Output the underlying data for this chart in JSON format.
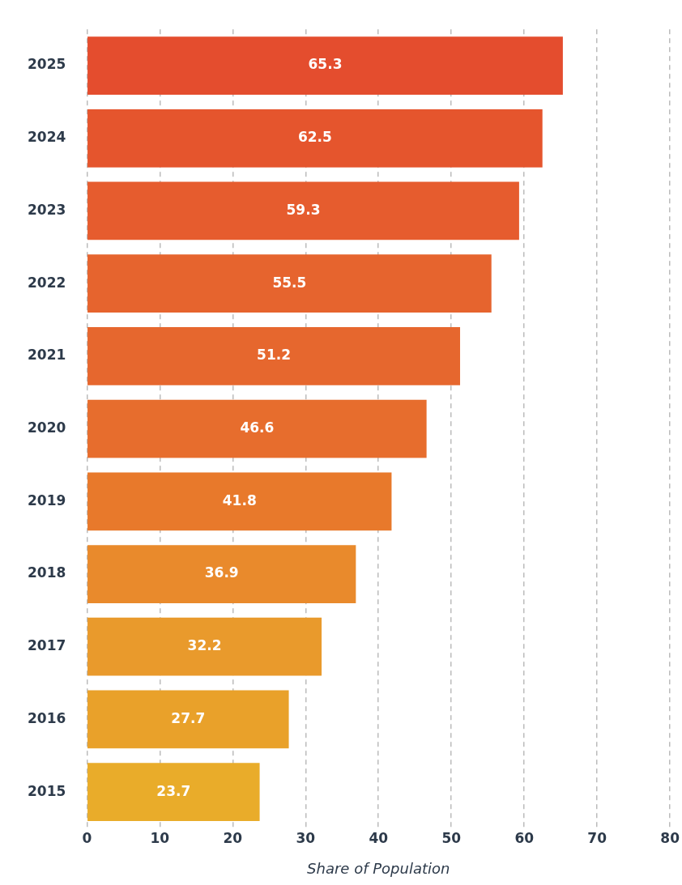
{
  "chart_data": {
    "type": "bar",
    "orientation": "horizontal",
    "xlabel": "Share of Population",
    "categories": [
      "2025",
      "2024",
      "2023",
      "2022",
      "2021",
      "2020",
      "2019",
      "2018",
      "2017",
      "2016",
      "2015"
    ],
    "values": [
      65.3,
      62.5,
      59.3,
      55.5,
      51.2,
      46.6,
      41.8,
      36.9,
      32.2,
      27.7,
      23.7
    ],
    "colors": [
      "#e44d2e",
      "#e5552d",
      "#e65c2e",
      "#e6642e",
      "#e6672e",
      "#e76d2d",
      "#e8792b",
      "#e98a2c",
      "#e99a2c",
      "#e9a12a",
      "#e9ac2a"
    ],
    "xlim": [
      0,
      80
    ],
    "xticks": [
      0,
      10,
      20,
      30,
      40,
      50,
      60,
      70,
      80
    ],
    "grid": "x",
    "legend": false,
    "data_labels": true
  }
}
